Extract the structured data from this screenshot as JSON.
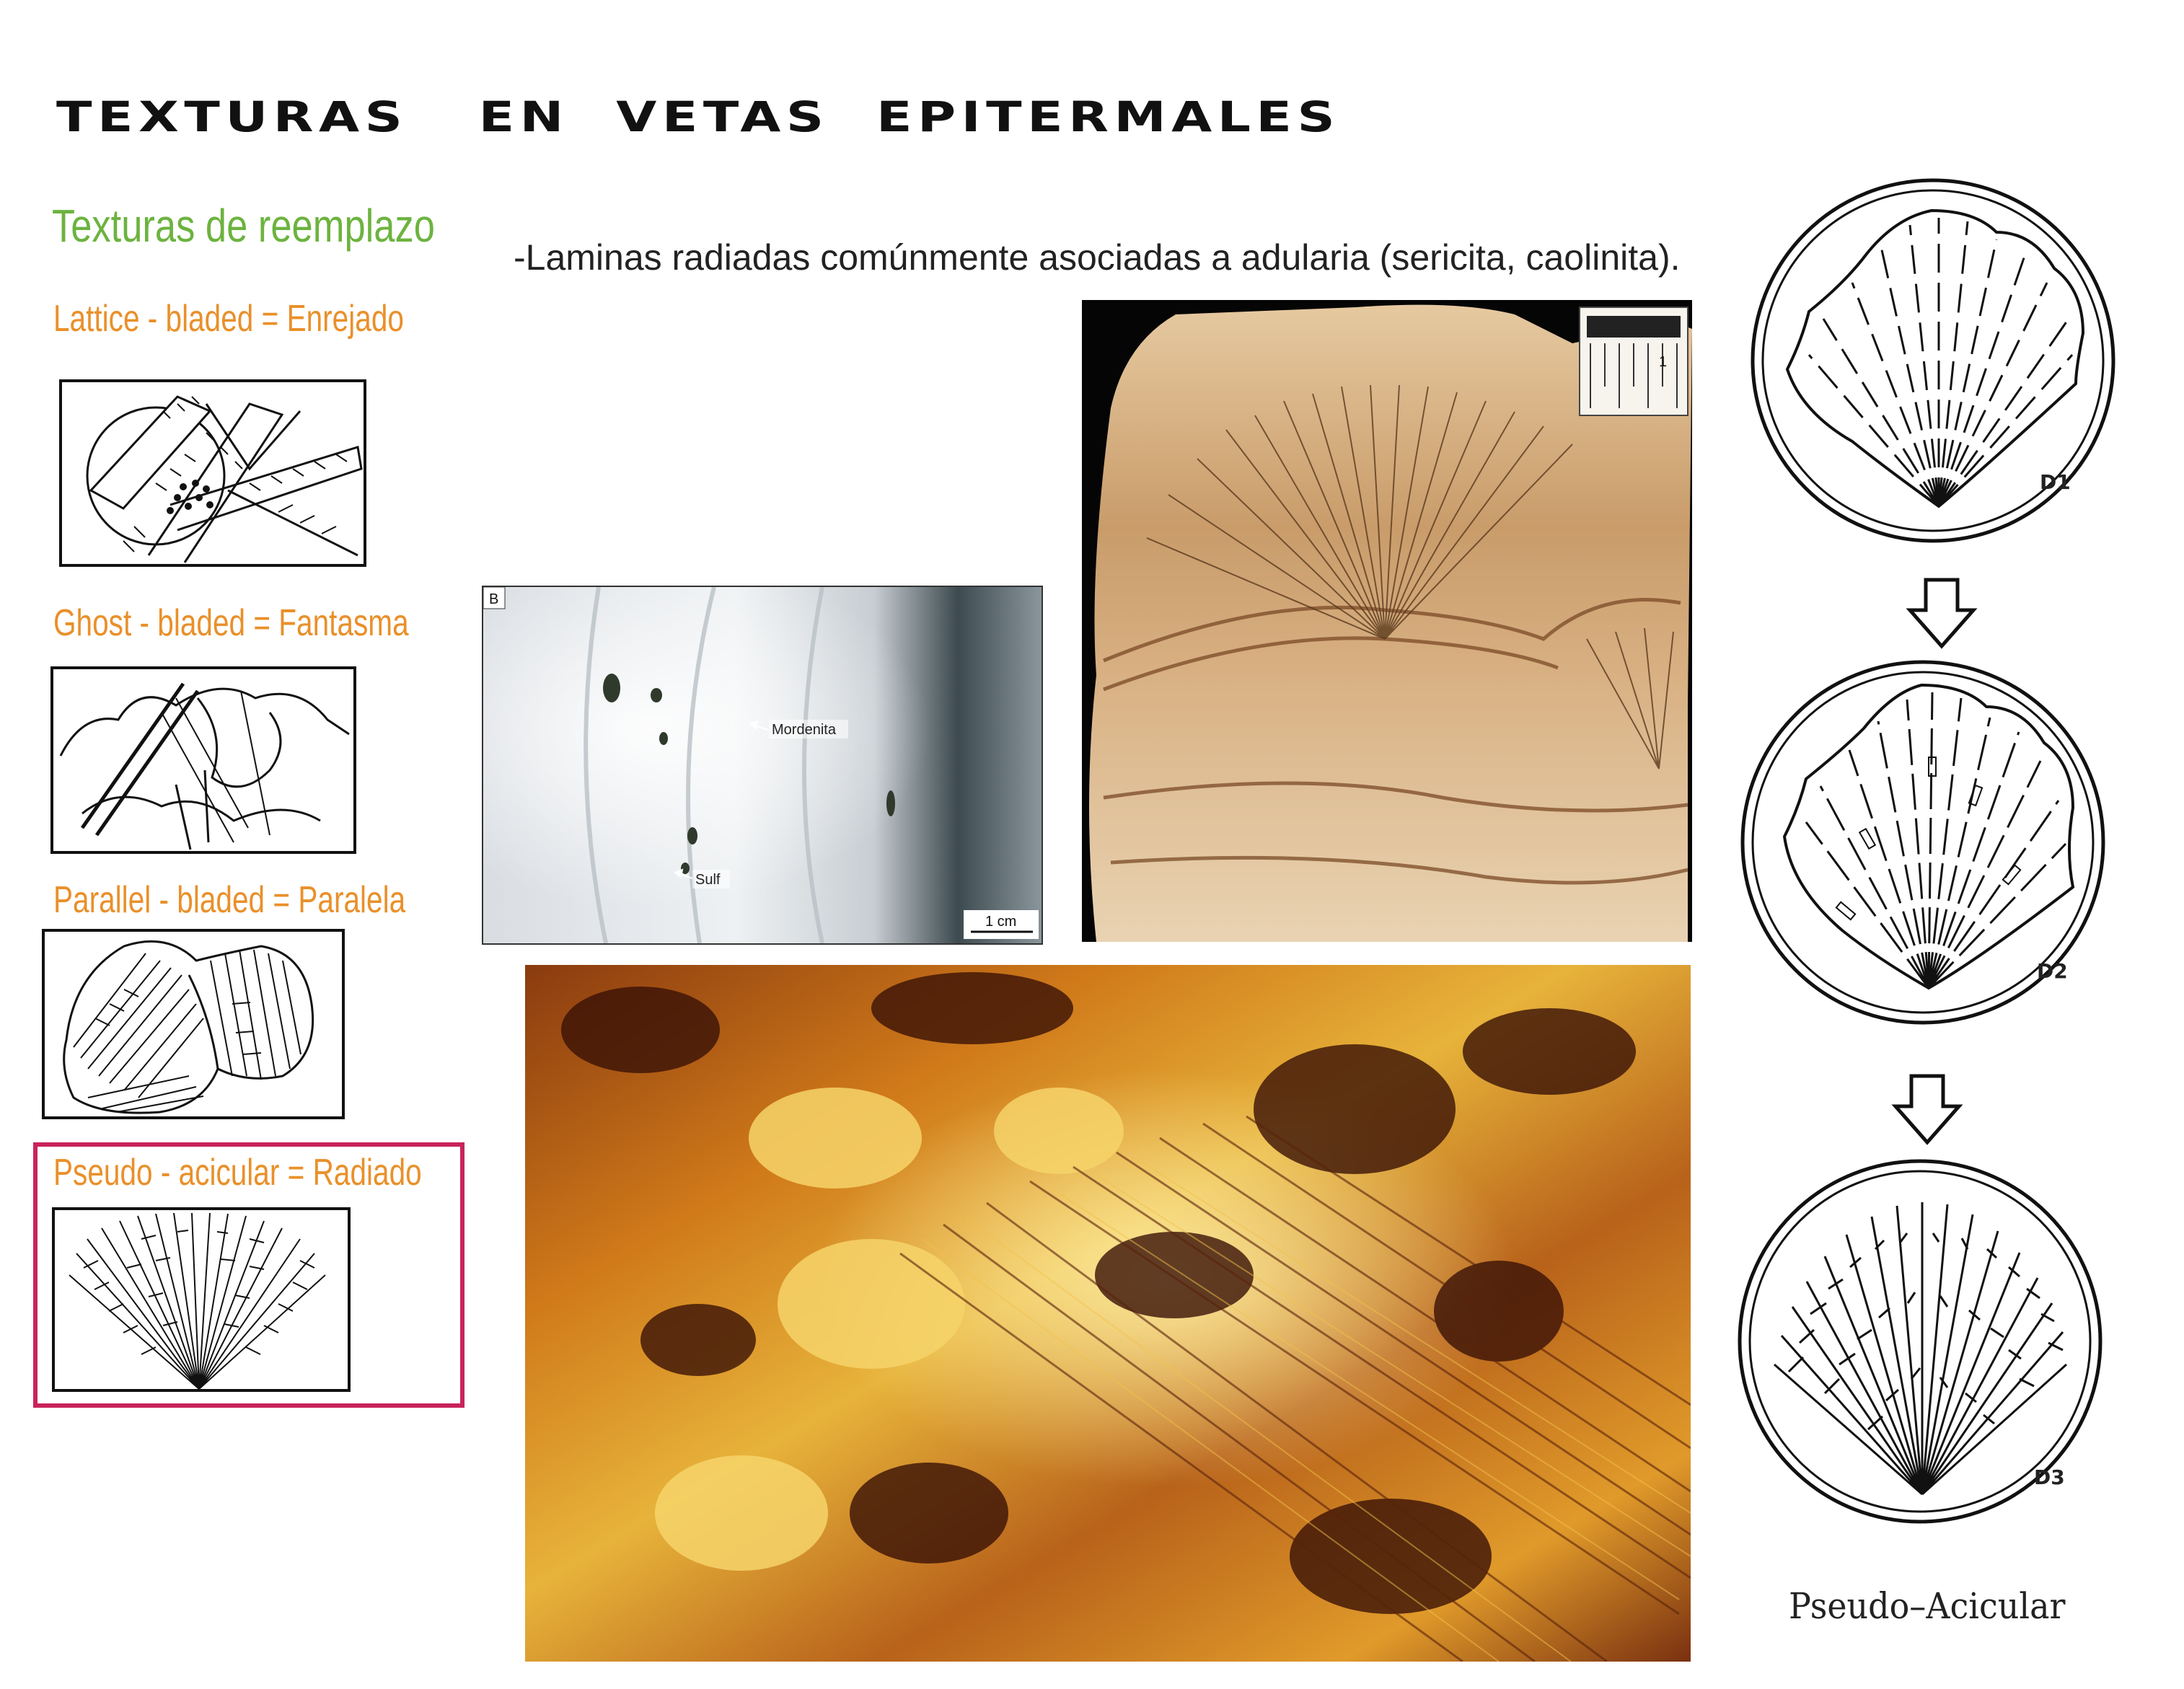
{
  "title": "TEXTURAS   EN  VETAS  EPITERMALES",
  "section_title": "Texturas de reemplazo",
  "textures": [
    {
      "label": "Lattice - bladed = Enrejado",
      "sketch_icon": "lattice-bladed-sketch"
    },
    {
      "label": "Ghost - bladed = Fantasma",
      "sketch_icon": "ghost-bladed-sketch"
    },
    {
      "label": "Parallel - bladed = Paralela",
      "sketch_icon": "parallel-bladed-sketch"
    },
    {
      "label": "Pseudo - acicular = Radiado",
      "sketch_icon": "pseudo-acicular-sketch",
      "highlighted": true
    }
  ],
  "description": "-Laminas radiadas comúnmente asociadas a adularia (sericita, caolinita).",
  "photo_b": {
    "panel_label": "B",
    "annotations": [
      "Mordenita",
      "Sulf"
    ],
    "scale_bar": "1 cm"
  },
  "hand_sample_photo": {
    "scale_marker": "1"
  },
  "stages": [
    {
      "code": "D1"
    },
    {
      "code": "D2"
    },
    {
      "code": "D3"
    }
  ],
  "figure_caption": "Pseudo–Acicular",
  "colors": {
    "title": "#111111",
    "section": "#6cb33f",
    "labels": "#e9902a",
    "highlight": "#c8235a"
  }
}
